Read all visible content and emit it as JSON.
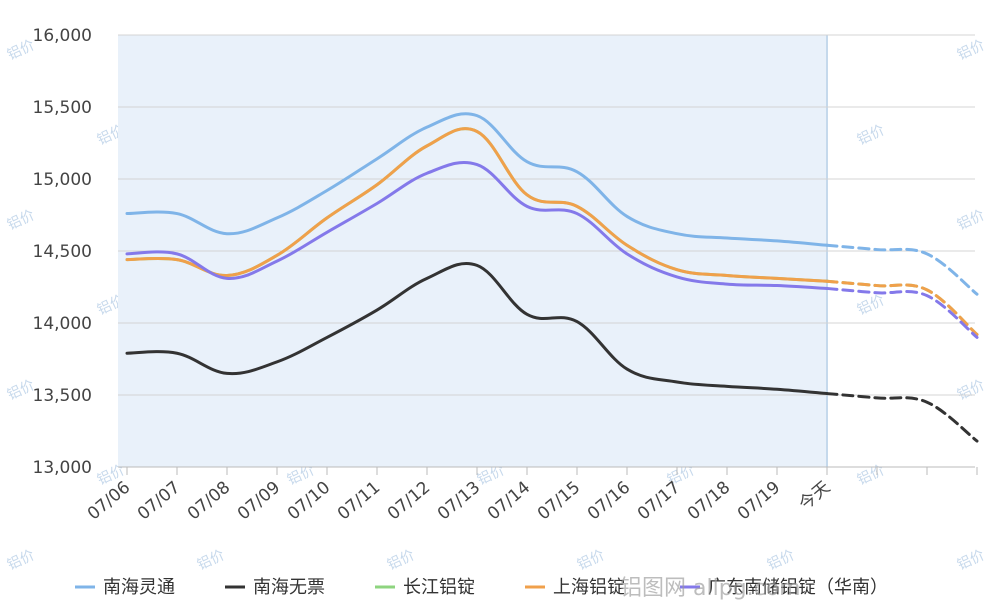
{
  "chart_data": {
    "type": "line",
    "categories": [
      "07/06",
      "07/07",
      "07/08",
      "07/09",
      "07/10",
      "07/11",
      "07/12",
      "07/13",
      "07/14",
      "07/15",
      "07/16",
      "07/17",
      "07/18",
      "07/19",
      "今天",
      "",
      "",
      ""
    ],
    "ylim": [
      13000,
      16000
    ],
    "yticks": [
      13000,
      13500,
      14000,
      14500,
      15000,
      15500,
      16000
    ],
    "ytick_labels": [
      "13,000",
      "13,500",
      "14,000",
      "14,500",
      "15,000",
      "15,500",
      "16,000"
    ],
    "history_highlight": {
      "from": "07/06",
      "to": "今天",
      "color": "#e9f1fa"
    },
    "forecast_start_index": 14,
    "grid": true,
    "legend_position": "bottom",
    "series": [
      {
        "name": "南海灵通",
        "color": "#7fb4e8",
        "values": [
          14760,
          14760,
          14620,
          14730,
          14920,
          15140,
          15360,
          15440,
          15120,
          15050,
          14740,
          14620,
          14590,
          14570,
          14540,
          14510,
          14480,
          14200
        ]
      },
      {
        "name": "南海无票",
        "color": "#333333",
        "values": [
          13790,
          13790,
          13650,
          13730,
          13900,
          14090,
          14310,
          14400,
          14060,
          14010,
          13680,
          13590,
          13560,
          13540,
          13510,
          13480,
          13450,
          13180
        ]
      },
      {
        "name": "长江铝锭",
        "color": "#8ed47f",
        "values": [
          14440,
          14440,
          14330,
          14470,
          14730,
          14960,
          15230,
          15330,
          14890,
          14810,
          14540,
          14370,
          14330,
          14310,
          14290,
          14260,
          14230,
          13920
        ]
      },
      {
        "name": "上海铝锭",
        "color": "#f0a04b",
        "values": [
          14440,
          14440,
          14330,
          14470,
          14730,
          14960,
          15230,
          15330,
          14890,
          14810,
          14540,
          14370,
          14330,
          14310,
          14290,
          14260,
          14230,
          13920
        ]
      },
      {
        "name": "广东南储铝锭（华南）",
        "color": "#8479ea",
        "values": [
          14480,
          14480,
          14310,
          14430,
          14630,
          14830,
          15040,
          15100,
          14810,
          14760,
          14480,
          14320,
          14270,
          14260,
          14240,
          14210,
          14190,
          13900
        ]
      }
    ]
  },
  "watermark": {
    "tile_text": "铝价",
    "footer_text": "铝图网    allpg.com"
  }
}
